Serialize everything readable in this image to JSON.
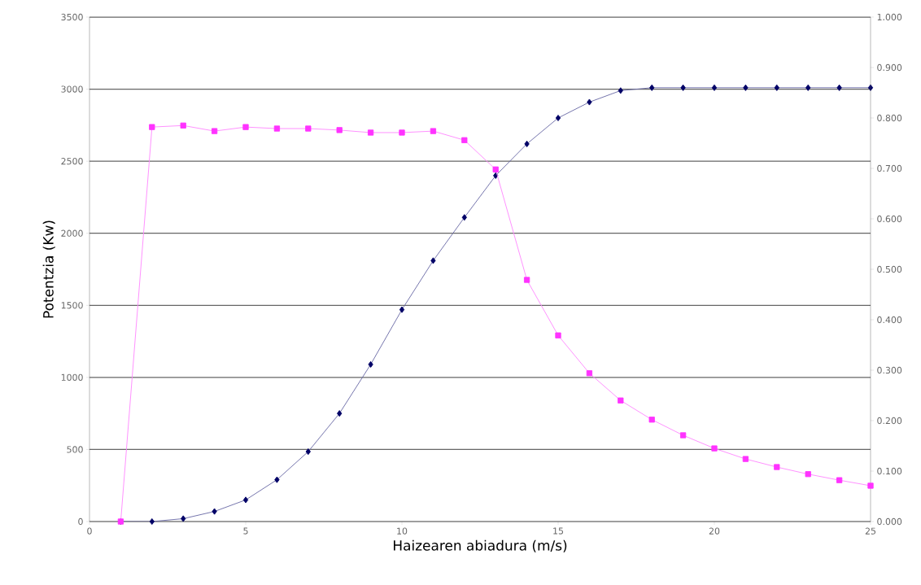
{
  "chart_data": {
    "type": "line",
    "xlabel": "Haizearen abiadura (m/s)",
    "ylabel": "Potentzia (Kw)",
    "x": [
      1,
      2,
      3,
      4,
      5,
      6,
      7,
      8,
      9,
      10,
      11,
      12,
      13,
      14,
      15,
      16,
      17,
      18,
      19,
      20,
      21,
      22,
      23,
      24,
      25
    ],
    "series": [
      {
        "color": "#000066",
        "marker": "diamond",
        "values": [
          0,
          0,
          20,
          70,
          150,
          290,
          485,
          750,
          1090,
          1470,
          1810,
          2110,
          2400,
          2620,
          2800,
          2910,
          2990,
          3010,
          3010,
          3010,
          3010,
          3010,
          3010,
          3010,
          3010
        ]
      },
      {
        "color": "#ff33ff",
        "marker": "square",
        "axis": "y2",
        "values": [
          0,
          0.782,
          0.785,
          0.774,
          0.782,
          0.779,
          0.779,
          0.776,
          0.771,
          0.771,
          0.774,
          0.756,
          0.698,
          0.479,
          0.369,
          0.294,
          0.24,
          0.202,
          0.171,
          0.145,
          0.124,
          0.108,
          0.094,
          0.082,
          0.071
        ]
      }
    ],
    "xlim": [
      0,
      25
    ],
    "xticks": [
      0,
      5,
      10,
      15,
      20,
      25
    ],
    "ylim": [
      0,
      3500
    ],
    "yticks": [
      0,
      500,
      1000,
      1500,
      2000,
      2500,
      3000,
      3500
    ],
    "y2lim": [
      0,
      1
    ],
    "y2ticks": [
      {
        "value": 0,
        "label": "0.000"
      },
      {
        "value": 0.1,
        "label": "0.100"
      },
      {
        "value": 0.2,
        "label": "0.200"
      },
      {
        "value": 0.3,
        "label": "0.300"
      },
      {
        "value": 0.4,
        "label": "0.400"
      },
      {
        "value": 0.5,
        "label": "0.500"
      },
      {
        "value": 0.6,
        "label": "0.600"
      },
      {
        "value": 0.7,
        "label": "0.700"
      },
      {
        "value": 0.8,
        "label": "0.800"
      },
      {
        "value": 0.9,
        "label": "0.900"
      },
      {
        "value": 1,
        "label": "1.000"
      }
    ],
    "grid": "y",
    "line_style": "solid"
  }
}
